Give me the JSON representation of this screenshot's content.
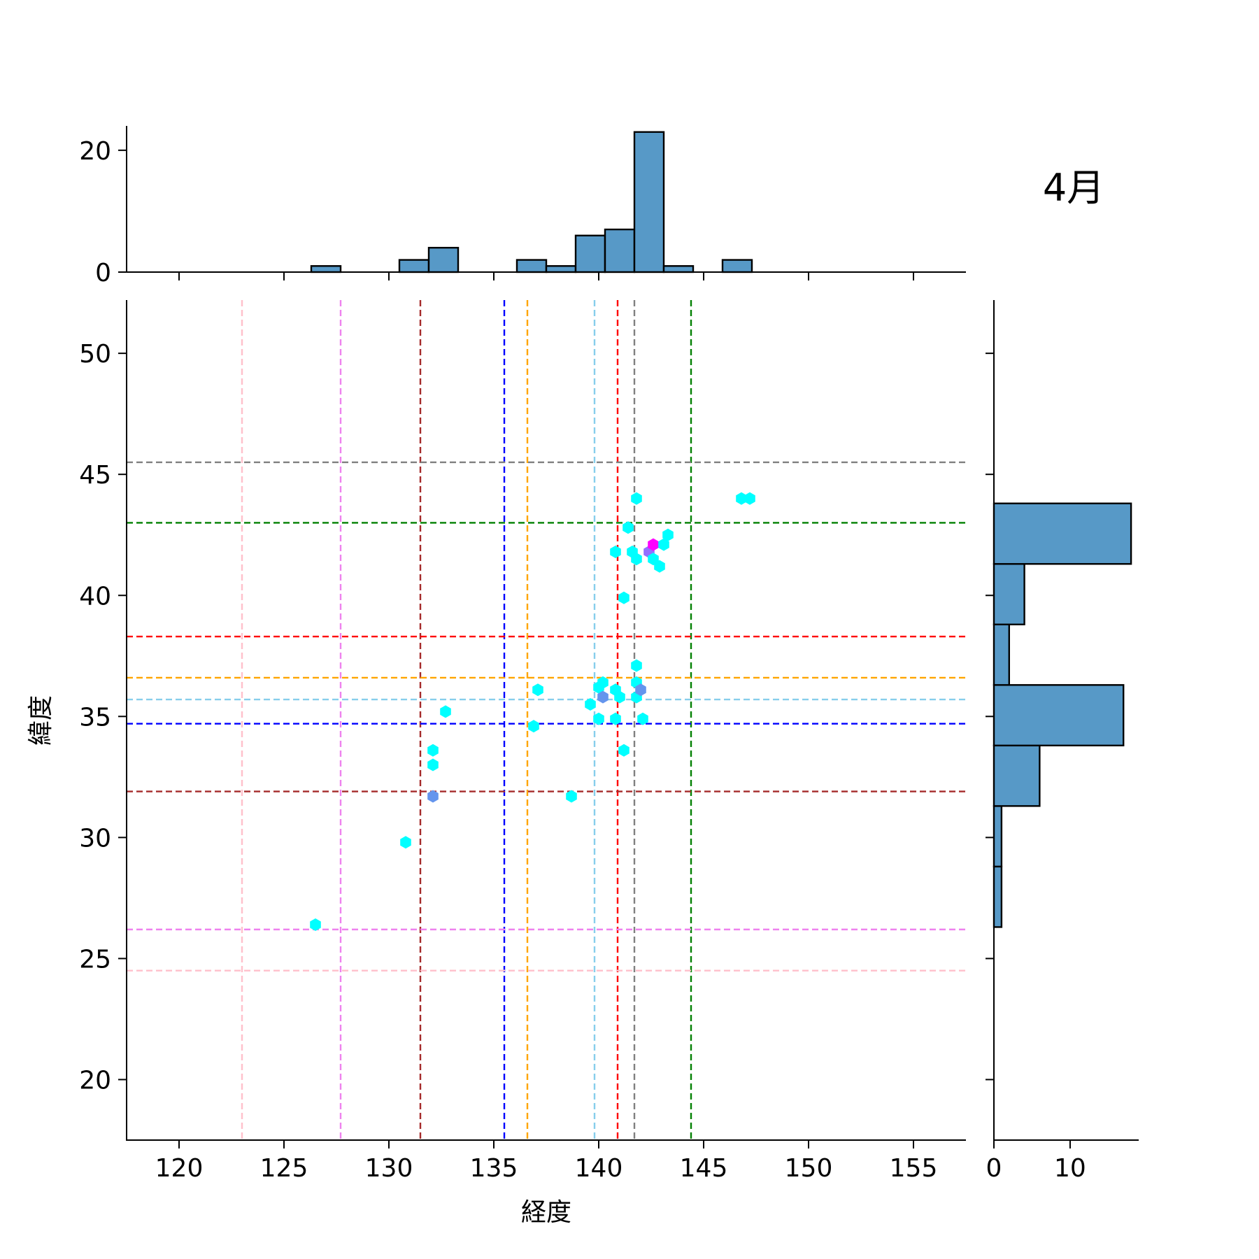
{
  "chart_data": {
    "type": "scatter",
    "title": "4月",
    "xlabel": "経度",
    "ylabel": "緯度",
    "xlim": [
      117.5,
      157.5
    ],
    "ylim": [
      17.5,
      52.2
    ],
    "xticks": [
      120,
      125,
      130,
      135,
      140,
      145,
      150,
      155
    ],
    "yticks": [
      20,
      25,
      30,
      35,
      40,
      45,
      50
    ],
    "points": [
      {
        "x": 126.5,
        "y": 26.4,
        "color": "#00ffff"
      },
      {
        "x": 130.8,
        "y": 29.8,
        "color": "#00ffff"
      },
      {
        "x": 132.1,
        "y": 31.7,
        "color": "#6495ed"
      },
      {
        "x": 132.1,
        "y": 33.0,
        "color": "#00ffff"
      },
      {
        "x": 132.1,
        "y": 33.6,
        "color": "#00ffff"
      },
      {
        "x": 132.7,
        "y": 35.2,
        "color": "#00ffff"
      },
      {
        "x": 136.9,
        "y": 34.6,
        "color": "#00ffff"
      },
      {
        "x": 137.1,
        "y": 36.1,
        "color": "#00ffff"
      },
      {
        "x": 138.7,
        "y": 31.7,
        "color": "#00ffff"
      },
      {
        "x": 139.6,
        "y": 35.5,
        "color": "#00ffff"
      },
      {
        "x": 140.0,
        "y": 34.9,
        "color": "#00ffff"
      },
      {
        "x": 140.0,
        "y": 36.2,
        "color": "#00ffff"
      },
      {
        "x": 140.2,
        "y": 36.4,
        "color": "#00ffff"
      },
      {
        "x": 140.2,
        "y": 35.8,
        "color": "#6495ed"
      },
      {
        "x": 140.8,
        "y": 34.9,
        "color": "#00ffff"
      },
      {
        "x": 140.8,
        "y": 36.1,
        "color": "#00ffff"
      },
      {
        "x": 141.0,
        "y": 35.8,
        "color": "#00ffff"
      },
      {
        "x": 141.2,
        "y": 33.6,
        "color": "#00ffff"
      },
      {
        "x": 141.8,
        "y": 37.1,
        "color": "#00ffff"
      },
      {
        "x": 141.8,
        "y": 36.4,
        "color": "#00ffff"
      },
      {
        "x": 141.8,
        "y": 35.8,
        "color": "#00ffff"
      },
      {
        "x": 142.0,
        "y": 36.1,
        "color": "#6495ed"
      },
      {
        "x": 142.1,
        "y": 34.9,
        "color": "#00ffff"
      },
      {
        "x": 141.2,
        "y": 39.9,
        "color": "#00ffff"
      },
      {
        "x": 140.8,
        "y": 41.8,
        "color": "#00ffff"
      },
      {
        "x": 141.6,
        "y": 41.8,
        "color": "#00ffff"
      },
      {
        "x": 141.8,
        "y": 41.5,
        "color": "#00ffff"
      },
      {
        "x": 141.4,
        "y": 42.8,
        "color": "#00ffff"
      },
      {
        "x": 142.4,
        "y": 41.8,
        "color": "#9370ff"
      },
      {
        "x": 142.6,
        "y": 42.1,
        "color": "#ff00ff"
      },
      {
        "x": 142.6,
        "y": 41.5,
        "color": "#00ffff"
      },
      {
        "x": 142.9,
        "y": 41.2,
        "color": "#00ffff"
      },
      {
        "x": 143.1,
        "y": 42.1,
        "color": "#00ffff"
      },
      {
        "x": 143.3,
        "y": 42.5,
        "color": "#00ffff"
      },
      {
        "x": 141.8,
        "y": 44.0,
        "color": "#00ffff"
      },
      {
        "x": 146.8,
        "y": 44.0,
        "color": "#00ffff"
      },
      {
        "x": 147.2,
        "y": 44.0,
        "color": "#00ffff"
      }
    ],
    "vlines": [
      {
        "x": 123.0,
        "color": "#ffc0cb"
      },
      {
        "x": 127.7,
        "color": "#ee82ee"
      },
      {
        "x": 131.5,
        "color": "#a52a2a"
      },
      {
        "x": 135.5,
        "color": "#0000ff"
      },
      {
        "x": 136.6,
        "color": "#ffa500"
      },
      {
        "x": 139.8,
        "color": "#87ceeb"
      },
      {
        "x": 140.9,
        "color": "#ff0000"
      },
      {
        "x": 141.7,
        "color": "#808080"
      },
      {
        "x": 144.4,
        "color": "#008000"
      }
    ],
    "hlines": [
      {
        "y": 24.5,
        "color": "#ffc0cb"
      },
      {
        "y": 26.2,
        "color": "#ee82ee"
      },
      {
        "y": 31.9,
        "color": "#a52a2a"
      },
      {
        "y": 34.7,
        "color": "#0000ff"
      },
      {
        "y": 35.7,
        "color": "#87ceeb"
      },
      {
        "y": 36.6,
        "color": "#ffa500"
      },
      {
        "y": 38.3,
        "color": "#ff0000"
      },
      {
        "y": 43.0,
        "color": "#008000"
      },
      {
        "y": 45.5,
        "color": "#808080"
      }
    ],
    "top_histogram": {
      "ylim": [
        0,
        24
      ],
      "yticks": [
        0,
        20
      ],
      "bins": [
        {
          "x0": 126.3,
          "x1": 127.7,
          "count": 1
        },
        {
          "x0": 127.7,
          "x1": 129.1,
          "count": 0
        },
        {
          "x0": 129.1,
          "x1": 130.5,
          "count": 0
        },
        {
          "x0": 130.5,
          "x1": 131.9,
          "count": 2
        },
        {
          "x0": 131.9,
          "x1": 133.3,
          "count": 4
        },
        {
          "x0": 133.3,
          "x1": 134.7,
          "count": 0
        },
        {
          "x0": 134.7,
          "x1": 136.1,
          "count": 0
        },
        {
          "x0": 136.1,
          "x1": 137.5,
          "count": 2
        },
        {
          "x0": 137.5,
          "x1": 138.9,
          "count": 1
        },
        {
          "x0": 138.9,
          "x1": 140.3,
          "count": 6
        },
        {
          "x0": 140.3,
          "x1": 141.7,
          "count": 7
        },
        {
          "x0": 141.7,
          "x1": 143.1,
          "count": 23
        },
        {
          "x0": 143.1,
          "x1": 144.5,
          "count": 1
        },
        {
          "x0": 144.5,
          "x1": 145.9,
          "count": 0
        },
        {
          "x0": 145.9,
          "x1": 147.3,
          "count": 2
        }
      ]
    },
    "right_histogram": {
      "xlim": [
        0,
        19
      ],
      "xticks": [
        0,
        10
      ],
      "bins": [
        {
          "y0": 26.3,
          "y1": 28.8,
          "count": 1
        },
        {
          "y0": 28.8,
          "y1": 31.3,
          "count": 1
        },
        {
          "y0": 31.3,
          "y1": 33.8,
          "count": 6
        },
        {
          "y0": 33.8,
          "y1": 36.3,
          "count": 17
        },
        {
          "y0": 36.3,
          "y1": 38.8,
          "count": 2
        },
        {
          "y0": 38.8,
          "y1": 41.3,
          "count": 4
        },
        {
          "y0": 41.3,
          "y1": 43.8,
          "count": 18
        }
      ]
    }
  }
}
